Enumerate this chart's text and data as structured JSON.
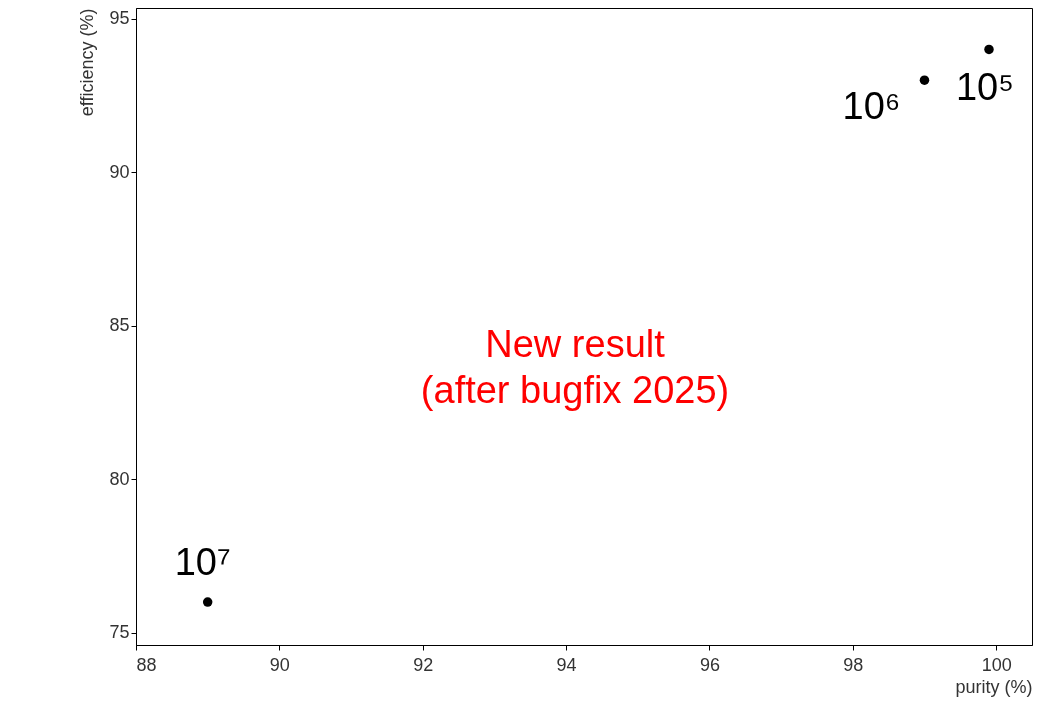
{
  "chart_data": {
    "type": "scatter",
    "xlabel": "purity (%)",
    "ylabel": "efficiency (%)",
    "x": [
      89,
      99,
      99.9
    ],
    "series": [
      {
        "color": "#000000",
        "values": [
          76,
          93,
          94
        ]
      }
    ],
    "xlim": [
      88,
      100.5
    ],
    "ylim": [
      74.6,
      95.35
    ],
    "xticks": [
      88,
      90,
      92,
      94,
      96,
      98,
      100
    ],
    "yticks": [
      75,
      80,
      85,
      90,
      95
    ],
    "grid": false,
    "marker": "circle",
    "annotations": [
      {
        "text": "10⁷",
        "x": 89,
        "y": 76
      },
      {
        "text": "10⁶",
        "x": 99,
        "y": 93
      },
      {
        "text": "10⁵",
        "x": 99.9,
        "y": 94
      },
      "New result\n(after bugfix 2025)"
    ]
  }
}
